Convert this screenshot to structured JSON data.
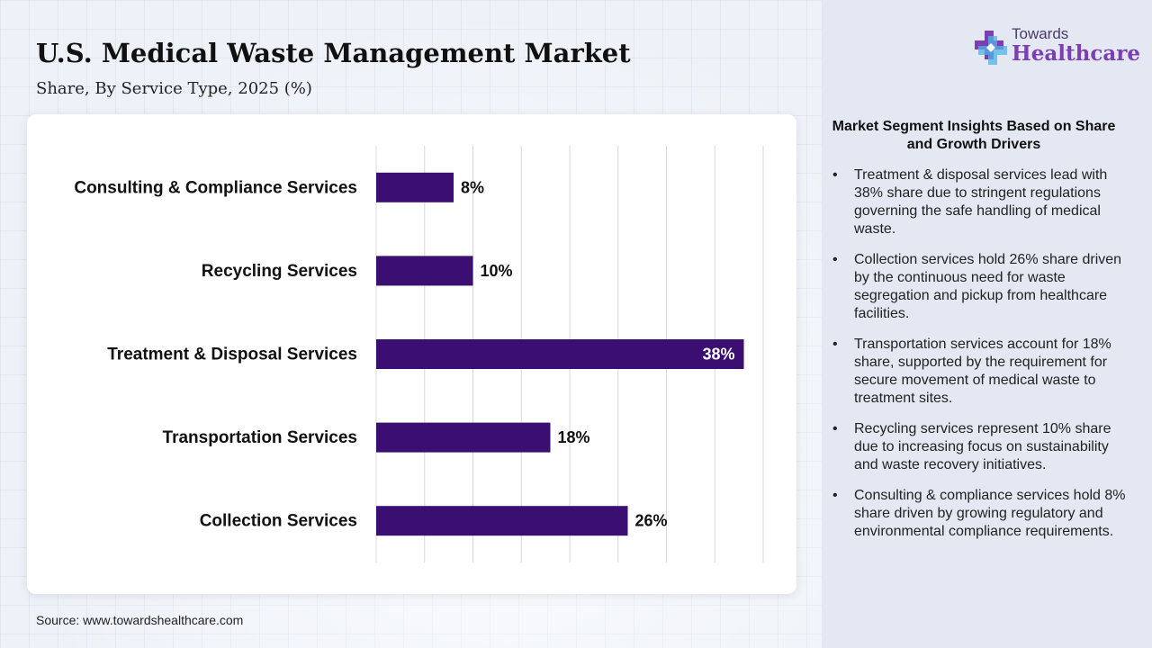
{
  "header": {
    "title": "U.S. Medical Waste Management Market",
    "subtitle": "Share, By Service Type, 2025 (%)"
  },
  "logo": {
    "small": "Towards",
    "big": "Healthcare",
    "icon": "medical-cross-icon"
  },
  "colors": {
    "bar": "#3b0f72",
    "accent": "#7b3fb3",
    "grid": "#d8d8d8"
  },
  "chart_data": {
    "type": "bar",
    "orientation": "horizontal",
    "categories": [
      "Consulting & Compliance Services",
      "Recycling Services",
      "Treatment & Disposal Services",
      "Transportation Services",
      "Collection Services"
    ],
    "values": [
      8,
      10,
      38,
      18,
      26
    ],
    "value_labels": [
      "8%",
      "10%",
      "38%",
      "18%",
      "26%"
    ],
    "xlim": [
      0,
      40
    ],
    "grid": true
  },
  "insights": {
    "title": "Market Segment Insights Based on Share and Growth Drivers",
    "items": [
      "Treatment & disposal services lead with 38% share due to stringent regulations governing the safe handling of medical waste.",
      "Collection services hold 26% share driven by the continuous need for waste segregation and pickup from healthcare facilities.",
      "Transportation services account for 18% share, supported by the requirement for secure movement of medical waste to treatment sites.",
      "Recycling services represent 10% share due to increasing focus on sustainability and waste recovery initiatives.",
      "Consulting & compliance services hold 8% share driven by growing regulatory and environmental compliance requirements."
    ]
  },
  "footer": {
    "source": "Source: www.towardshealthcare.com"
  }
}
